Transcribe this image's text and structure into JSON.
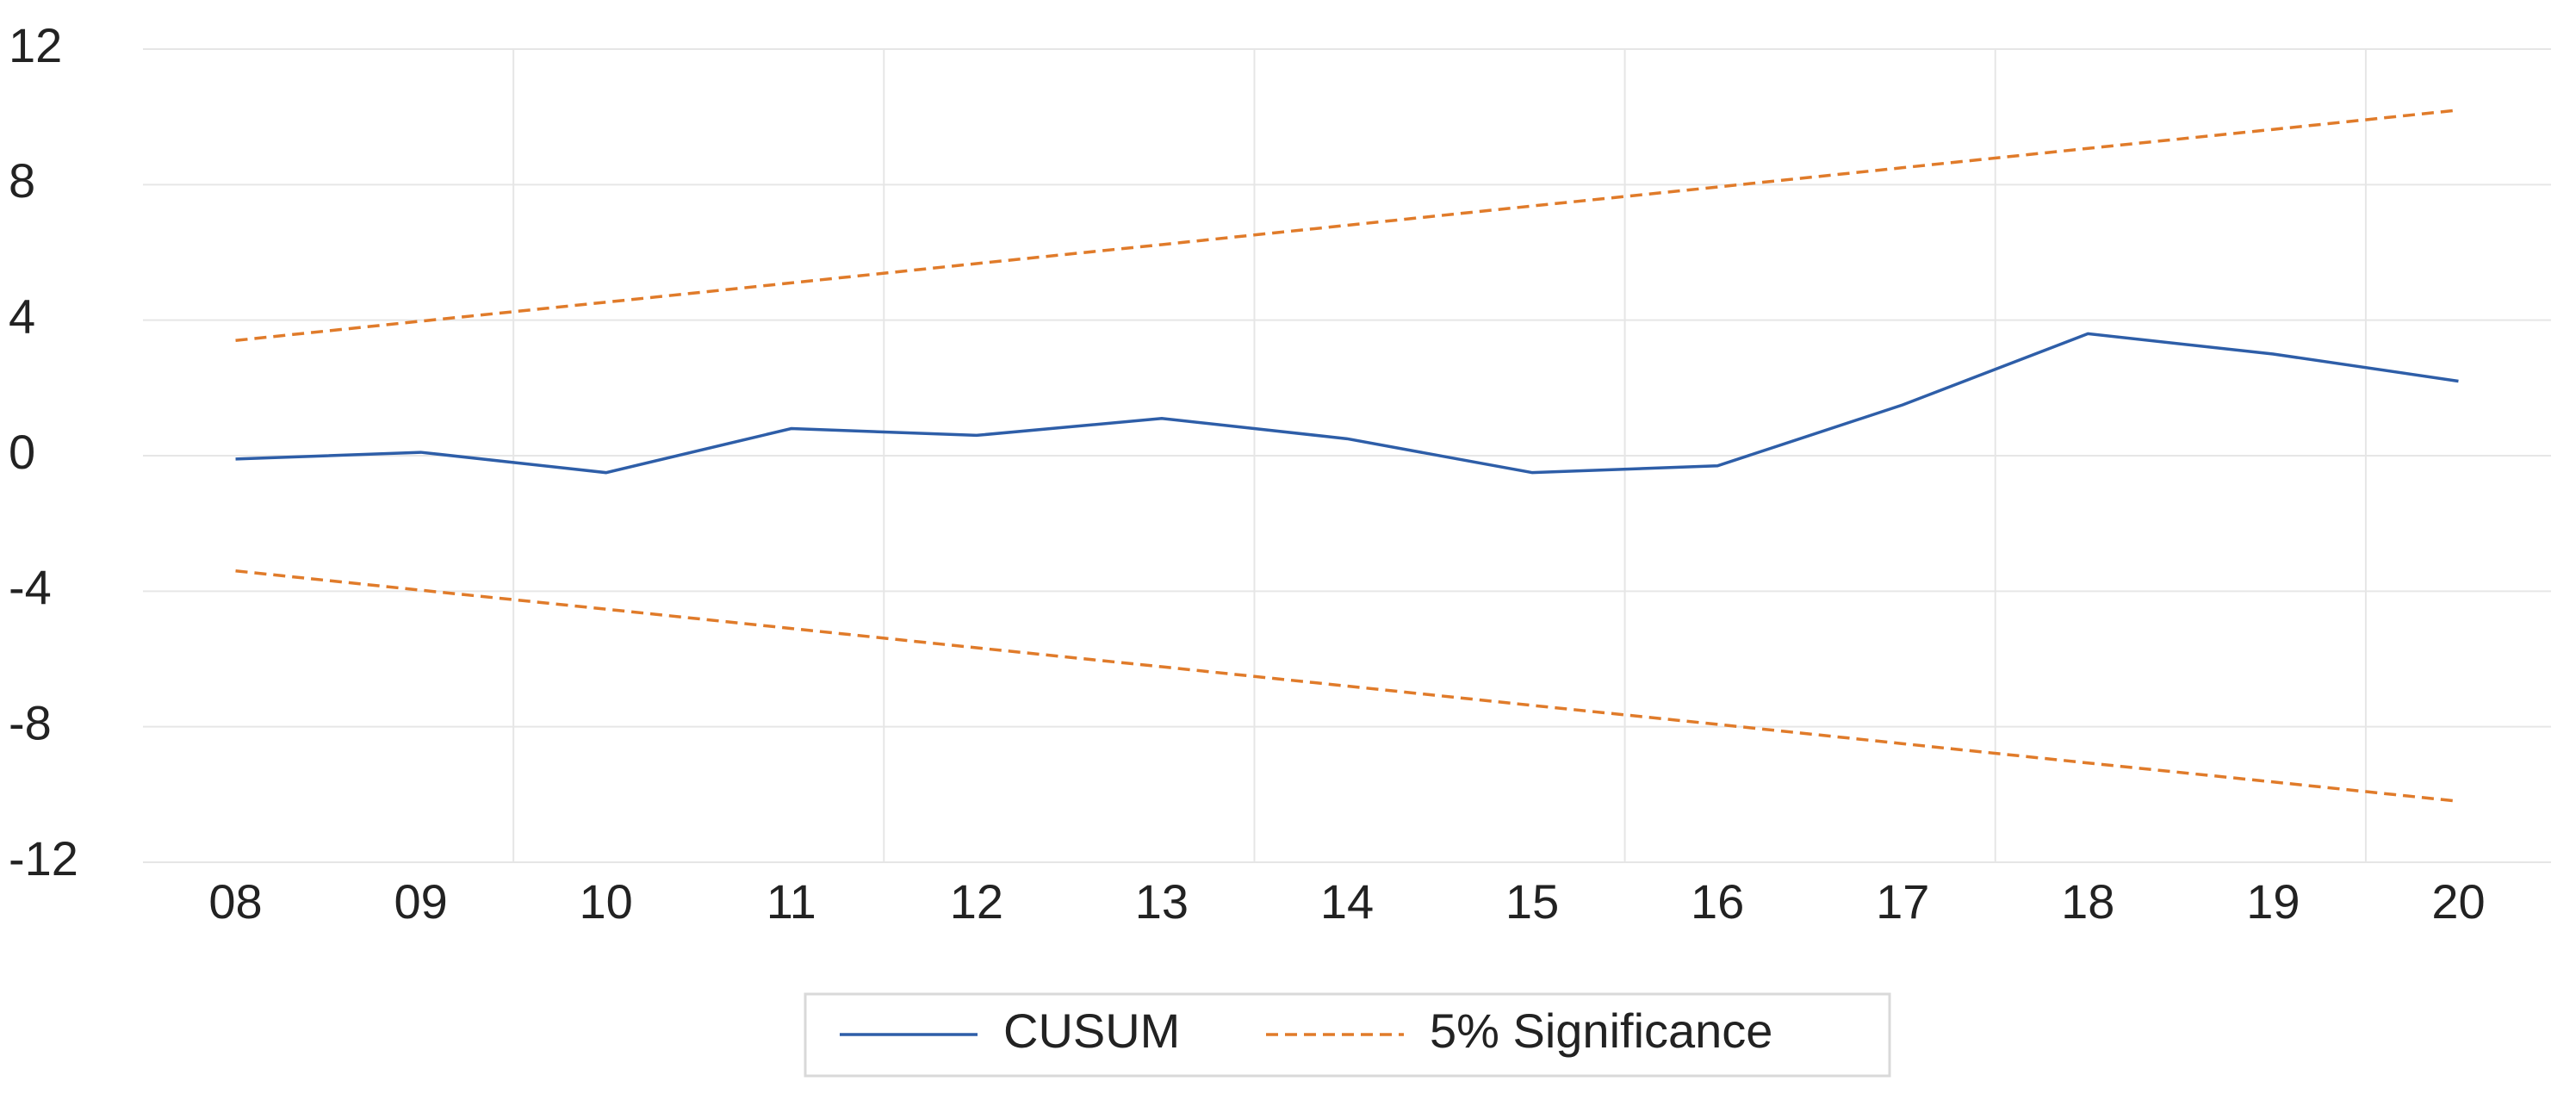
{
  "chart_data": {
    "type": "line",
    "categories": [
      "08",
      "09",
      "10",
      "11",
      "12",
      "13",
      "14",
      "15",
      "16",
      "17",
      "18",
      "19",
      "20"
    ],
    "series": [
      {
        "name": "CUSUM",
        "color": "#2e5ea8",
        "dashed": false,
        "values": [
          -0.1,
          0.1,
          -0.5,
          0.8,
          0.6,
          1.1,
          0.5,
          -0.5,
          -0.3,
          1.5,
          3.6,
          3.0,
          2.2
        ]
      },
      {
        "name": "5% Significance",
        "color": "#e07b2a",
        "dashed": true,
        "values": [
          3.4,
          3.97,
          4.53,
          5.1,
          5.67,
          6.23,
          6.8,
          7.37,
          7.93,
          8.5,
          9.07,
          9.63,
          10.2
        ],
        "lower_values": [
          -3.4,
          -3.97,
          -4.53,
          -5.1,
          -5.67,
          -6.23,
          -6.8,
          -7.37,
          -7.93,
          -8.5,
          -9.07,
          -9.63,
          -10.2
        ]
      }
    ],
    "ylim": [
      -12,
      12
    ],
    "yticks": [
      -12,
      -8,
      -4,
      0,
      4,
      8,
      12
    ],
    "grid": true,
    "legend": "bottom"
  }
}
